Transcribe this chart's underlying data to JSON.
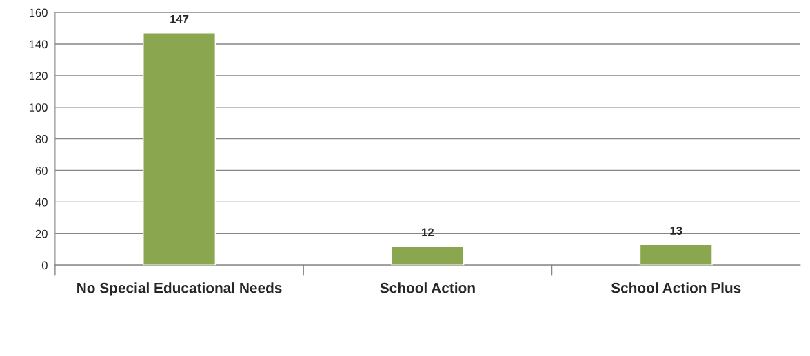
{
  "chart_data": {
    "type": "bar",
    "categories": [
      "No Special Educational Needs",
      "School Action",
      "School Action Plus"
    ],
    "values": [
      147,
      12,
      13
    ],
    "color": "#8aa64f",
    "ylim": [
      0,
      160
    ],
    "yticks": [
      0,
      20,
      40,
      60,
      80,
      100,
      120,
      140,
      160
    ],
    "grid": "y",
    "data_labels": true
  }
}
